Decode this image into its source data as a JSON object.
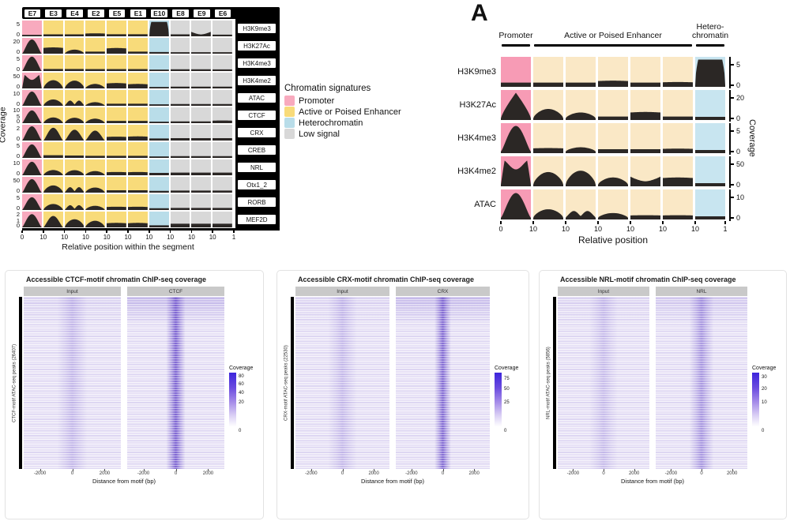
{
  "colors": {
    "promoter": "#F8AABE",
    "promoter_a": "#F79BB5",
    "enhancer": "#F8DB7A",
    "enhancer_a": "#FAE8C6",
    "hetero": "#B9DDE9",
    "hetero_a": "#C8E5F0",
    "low": "#D8D8D8",
    "shape": "#2B2725",
    "strip": "#C9C9C9",
    "heat_base": "#EFEBF8",
    "heat_band": "#7257CE",
    "colorbar_top": "#3D25DC"
  },
  "legend": {
    "title": "Chromatin signatures",
    "items": [
      {
        "label": "Promoter",
        "class": "promoter"
      },
      {
        "label": "Active or Poised Enhancer",
        "class": "enhancer"
      },
      {
        "label": "Heterochromatin",
        "class": "hetero"
      },
      {
        "label": "Low signal",
        "class": "low"
      }
    ]
  },
  "chart_data": [
    {
      "id": "segment-signatures",
      "type": "area",
      "title": "",
      "x_label": "Relative position within the segment",
      "y_label": "Coverage",
      "x_ticks": [
        "0",
        "10",
        "10",
        "10",
        "10",
        "10",
        "10",
        "10",
        "10",
        "10",
        "1"
      ],
      "columns": [
        {
          "id": "E7",
          "class": "promoter"
        },
        {
          "id": "E3",
          "class": "enhancer"
        },
        {
          "id": "E4",
          "class": "enhancer"
        },
        {
          "id": "E2",
          "class": "enhancer"
        },
        {
          "id": "E5",
          "class": "enhancer"
        },
        {
          "id": "E1",
          "class": "enhancer"
        },
        {
          "id": "E10",
          "class": "hetero"
        },
        {
          "id": "E8",
          "class": "low"
        },
        {
          "id": "E9",
          "class": "low"
        },
        {
          "id": "E6",
          "class": "low"
        }
      ],
      "rows": [
        {
          "label": "H3K9me3",
          "y_ticks": [
            "5",
            "0"
          ],
          "cells": [
            [
              "flat",
              0.1
            ],
            [
              "flat",
              0.13
            ],
            [
              "flat",
              0.13
            ],
            [
              "bar",
              0.2
            ],
            [
              "flat",
              0.14
            ],
            [
              "flat",
              0.14
            ],
            [
              "blob",
              0.96
            ],
            [
              "flat",
              0.13
            ],
            [
              "bowl",
              0.3
            ],
            [
              "flat",
              0.11
            ]
          ]
        },
        {
          "label": "H3K27Ac",
          "y_ticks": [
            "20",
            "0"
          ],
          "cells": [
            [
              "dome",
              0.95
            ],
            [
              "bar",
              0.42
            ],
            [
              "bump",
              0.27
            ],
            [
              "flat",
              0.14
            ],
            [
              "bar",
              0.38
            ],
            [
              "flat",
              0.14
            ],
            [
              "flat",
              0.11
            ],
            [
              "flat",
              0.1
            ],
            [
              "flat",
              0.1
            ],
            [
              "flat",
              0.1
            ]
          ]
        },
        {
          "label": "H3K4me3",
          "y_ticks": [
            "5",
            "0"
          ],
          "cells": [
            [
              "dome",
              0.96
            ],
            [
              "flat",
              0.14
            ],
            [
              "flat",
              0.14
            ],
            [
              "flat",
              0.13
            ],
            [
              "flat",
              0.13
            ],
            [
              "flat",
              0.13
            ],
            [
              "flat",
              0.1
            ],
            [
              "flat",
              0.12
            ],
            [
              "flat",
              0.12
            ],
            [
              "flat",
              0.11
            ]
          ]
        },
        {
          "label": "H3K4me2",
          "y_ticks": [
            "50",
            "0"
          ],
          "cells": [
            [
              "dip",
              0.95
            ],
            [
              "bump",
              0.55
            ],
            [
              "bump",
              0.52
            ],
            [
              "bump",
              0.3
            ],
            [
              "bar",
              0.36
            ],
            [
              "bar",
              0.3
            ],
            [
              "flat",
              0.1
            ],
            [
              "flat",
              0.12
            ],
            [
              "flat",
              0.12
            ],
            [
              "flat",
              0.12
            ]
          ]
        },
        {
          "label": "ATAC",
          "y_ticks": [
            "10",
            "0"
          ],
          "cells": [
            [
              "dome",
              0.95
            ],
            [
              "bump",
              0.42
            ],
            [
              "bump2",
              0.38
            ],
            [
              "bump",
              0.24
            ],
            [
              "flat",
              0.14
            ],
            [
              "flat",
              0.14
            ],
            [
              "flat",
              0.1
            ],
            [
              "flat",
              0.12
            ],
            [
              "flat",
              0.12
            ],
            [
              "flat",
              0.12
            ]
          ]
        },
        {
          "label": "CTCF",
          "y_ticks": [
            "10",
            "5",
            "0"
          ],
          "cells": [
            [
              "dome",
              0.85
            ],
            [
              "bump",
              0.38
            ],
            [
              "bump",
              0.36
            ],
            [
              "bump",
              0.3
            ],
            [
              "flat",
              0.15
            ],
            [
              "flat",
              0.15
            ],
            [
              "flat",
              0.1
            ],
            [
              "flat",
              0.12
            ],
            [
              "flat",
              0.12
            ],
            [
              "bar",
              0.18
            ]
          ]
        },
        {
          "label": "CRX",
          "y_ticks": [
            "2",
            "0"
          ],
          "cells": [
            [
              "dome",
              0.95
            ],
            [
              "dome",
              0.85
            ],
            [
              "dome",
              0.72
            ],
            [
              "dome",
              0.66
            ],
            [
              "bar",
              0.26
            ],
            [
              "bar",
              0.28
            ],
            [
              "flat",
              0.14
            ],
            [
              "flat",
              0.16
            ],
            [
              "flat",
              0.16
            ],
            [
              "flat",
              0.16
            ]
          ]
        },
        {
          "label": "CREB",
          "y_ticks": [
            "5",
            "0"
          ],
          "cells": [
            [
              "dome",
              0.9
            ],
            [
              "flat",
              0.18
            ],
            [
              "flat",
              0.16
            ],
            [
              "flat",
              0.14
            ],
            [
              "flat",
              0.14
            ],
            [
              "flat",
              0.14
            ],
            [
              "flat",
              0.1
            ],
            [
              "flat",
              0.12
            ],
            [
              "flat",
              0.12
            ],
            [
              "flat",
              0.12
            ]
          ]
        },
        {
          "label": "NRL",
          "y_ticks": [
            "10",
            "0"
          ],
          "cells": [
            [
              "dome",
              0.9
            ],
            [
              "bump",
              0.35
            ],
            [
              "bump",
              0.34
            ],
            [
              "bump",
              0.28
            ],
            [
              "bar",
              0.22
            ],
            [
              "bar",
              0.22
            ],
            [
              "flat",
              0.16
            ],
            [
              "flat",
              0.18
            ],
            [
              "flat",
              0.18
            ],
            [
              "flat",
              0.18
            ]
          ]
        },
        {
          "label": "Otx1_2",
          "y_ticks": [
            "50",
            "0"
          ],
          "cells": [
            [
              "dome",
              0.9
            ],
            [
              "bump",
              0.48
            ],
            [
              "bump2",
              0.4
            ],
            [
              "bump",
              0.34
            ],
            [
              "flat",
              0.16
            ],
            [
              "flat",
              0.16
            ],
            [
              "flat",
              0.12
            ],
            [
              "flat",
              0.14
            ],
            [
              "flat",
              0.14
            ],
            [
              "flat",
              0.14
            ]
          ]
        },
        {
          "label": "RORB",
          "y_ticks": [
            "5",
            "0"
          ],
          "cells": [
            [
              "dome",
              0.85
            ],
            [
              "bump",
              0.4
            ],
            [
              "bump2",
              0.35
            ],
            [
              "bump",
              0.28
            ],
            [
              "bar",
              0.22
            ],
            [
              "bar",
              0.22
            ],
            [
              "flat",
              0.12
            ],
            [
              "flat",
              0.14
            ],
            [
              "flat",
              0.14
            ],
            [
              "flat",
              0.14
            ]
          ]
        },
        {
          "label": "MEF2D",
          "y_ticks": [
            "2",
            "1",
            "0"
          ],
          "cells": [
            [
              "dome",
              0.88
            ],
            [
              "dome",
              0.76
            ],
            [
              "bump",
              0.54
            ],
            [
              "bump",
              0.44
            ],
            [
              "bar",
              0.3
            ],
            [
              "bar",
              0.3
            ],
            [
              "flat",
              0.14
            ],
            [
              "flat",
              0.24
            ],
            [
              "flat",
              0.24
            ],
            [
              "flat",
              0.24
            ]
          ]
        }
      ]
    },
    {
      "id": "panel-a",
      "type": "area",
      "panel_label": "A",
      "x_label": "Relative position",
      "y_label": "Coverage",
      "x_ticks": [
        "0",
        "10",
        "10",
        "10",
        "10",
        "10",
        "10",
        "1"
      ],
      "groups": [
        {
          "label": "Promoter",
          "span": 1,
          "class": "promoter_a",
          "two_line": false
        },
        {
          "label": "Active or Poised Enhancer",
          "span": 5,
          "class": "enhancer_a",
          "two_line": false
        },
        {
          "label": "Hetero-chromatin",
          "span": 1,
          "class": "hetero_a",
          "two_line": true
        }
      ],
      "rows": [
        {
          "label": "H3K9me3",
          "y_ticks": [
            "5",
            "0"
          ],
          "cells": [
            [
              "flat",
              0.1
            ],
            [
              "flat",
              0.1
            ],
            [
              "flat",
              0.1
            ],
            [
              "bar",
              0.17
            ],
            [
              "flat",
              0.1
            ],
            [
              "bar",
              0.12
            ],
            [
              "blob",
              0.95
            ]
          ]
        },
        {
          "label": "H3K27Ac",
          "y_ticks": [
            "20",
            "0"
          ],
          "cells": [
            [
              "peak",
              0.95
            ],
            [
              "bump",
              0.35
            ],
            [
              "bump",
              0.22
            ],
            [
              "flat",
              0.07
            ],
            [
              "bar",
              0.24
            ],
            [
              "flat",
              0.07
            ],
            [
              "flat",
              0.06
            ]
          ]
        },
        {
          "label": "H3K4me3",
          "y_ticks": [
            "5",
            "0"
          ],
          "cells": [
            [
              "dome",
              0.95
            ],
            [
              "bar",
              0.13
            ],
            [
              "bump",
              0.16
            ],
            [
              "flat",
              0.09
            ],
            [
              "flat",
              0.09
            ],
            [
              "bar",
              0.11
            ],
            [
              "flat",
              0.06
            ]
          ]
        },
        {
          "label": "H3K4me2",
          "y_ticks": [
            "50",
            "0"
          ],
          "cells": [
            [
              "dip",
              0.95
            ],
            [
              "bump",
              0.47
            ],
            [
              "bump",
              0.52
            ],
            [
              "bump",
              0.27
            ],
            [
              "bowl",
              0.3
            ],
            [
              "bar",
              0.27
            ],
            [
              "flat",
              0.06
            ]
          ]
        },
        {
          "label": "ATAC",
          "y_ticks": [
            "10",
            "0"
          ],
          "cells": [
            [
              "dome",
              0.92
            ],
            [
              "bump",
              0.32
            ],
            [
              "bump2",
              0.28
            ],
            [
              "bump",
              0.18
            ],
            [
              "bar",
              0.1
            ],
            [
              "bar",
              0.1
            ],
            [
              "flat",
              0.06
            ]
          ]
        }
      ]
    },
    {
      "id": "chip-heatmaps",
      "type": "heatmap",
      "panels": [
        {
          "title": "Accessible CTCF-motif chromatin ChIP-seq coverage",
          "y_label": "CTCF-motif ATAC-seq peaks (26407)",
          "x_label": "Distance from motif (bp)",
          "x_ticks": [
            "-2000",
            "0",
            "2000"
          ],
          "facets": [
            {
              "label": "Input",
              "band_opacity": 0.3,
              "band_width": 7
            },
            {
              "label": "CTCF",
              "band_opacity": 0.95,
              "band_width": 4.5
            }
          ],
          "colorbar": {
            "title": "Coverage",
            "ticks": [
              [
                "80",
                0.06
              ],
              [
                "60",
                0.2
              ],
              [
                "40",
                0.34
              ],
              [
                "20",
                0.5
              ],
              [
                "0",
                0.97
              ]
            ]
          }
        },
        {
          "title": "Accessible CRX-motif chromatin ChIP-seq coverage",
          "y_label": "CRX-motif ATAC-seq peaks (22530)",
          "x_label": "Distance from motif (bp)",
          "x_ticks": [
            "-2000",
            "0",
            "2000"
          ],
          "facets": [
            {
              "label": "Input",
              "band_opacity": 0.28,
              "band_width": 7
            },
            {
              "label": "CRX",
              "band_opacity": 0.9,
              "band_width": 4
            }
          ],
          "colorbar": {
            "title": "Coverage",
            "ticks": [
              [
                "75",
                0.1
              ],
              [
                "50",
                0.28
              ],
              [
                "25",
                0.5
              ],
              [
                "0",
                0.97
              ]
            ]
          }
        },
        {
          "title": "Accessible NRL-motif chromatin ChIP-seq coverage",
          "y_label": "NRL-motif ATAC-seq peaks (5856)",
          "x_label": "Distance from motif (bp)",
          "x_ticks": [
            "-2000",
            "0",
            "2000"
          ],
          "facets": [
            {
              "label": "Input",
              "band_opacity": 0.26,
              "band_width": 7
            },
            {
              "label": "NRL",
              "band_opacity": 0.55,
              "band_width": 6
            }
          ],
          "colorbar": {
            "title": "Coverage",
            "ticks": [
              [
                "30",
                0.08
              ],
              [
                "20",
                0.27
              ],
              [
                "10",
                0.5
              ],
              [
                "0",
                0.97
              ]
            ]
          }
        }
      ]
    }
  ]
}
